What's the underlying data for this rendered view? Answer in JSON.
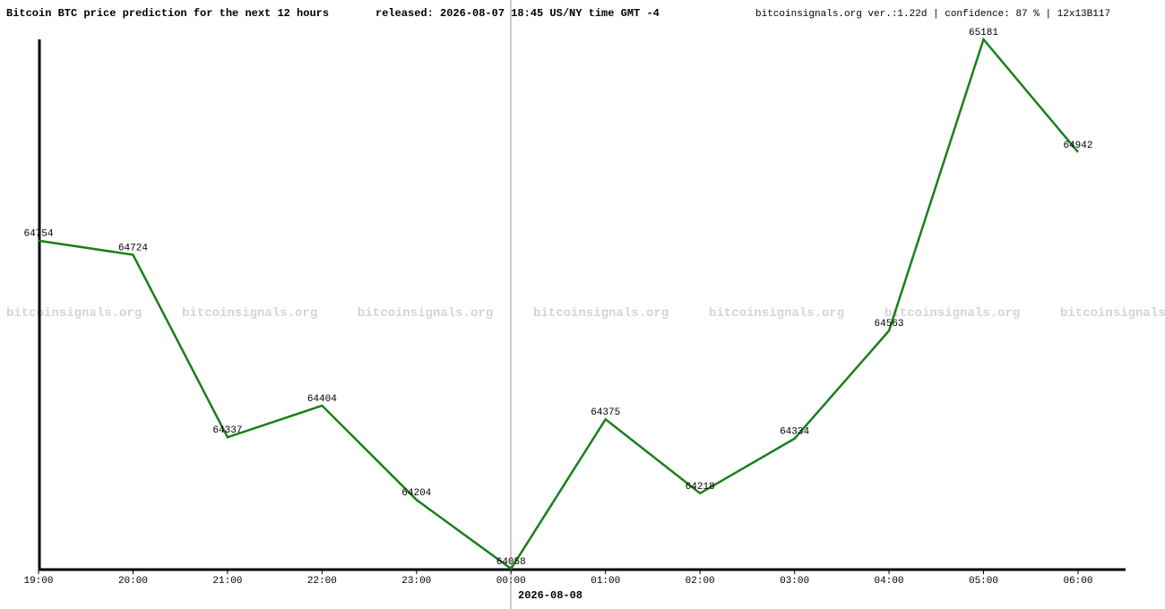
{
  "chart_data": {
    "type": "line",
    "title": "Bitcoin BTC price prediction for the next 12 hours",
    "subtitle": "released: 2026-08-07 18:45 US/NY time GMT -4",
    "source_note": "bitcoinsignals.org ver.:1.22d | confidence: 87 % | 12x13B117",
    "watermark": "bitcoinsignals.org",
    "date_marker": "2026-08-08",
    "categories": [
      "19:00",
      "20:00",
      "21:00",
      "22:00",
      "23:00",
      "00:00",
      "01:00",
      "02:00",
      "03:00",
      "04:00",
      "05:00",
      "06:00"
    ],
    "series": [
      {
        "name": "BTC",
        "color": "#1a7f1a",
        "values": [
          64754,
          64724,
          64337,
          64404,
          64204,
          64058,
          64375,
          64218,
          64334,
          64563,
          65181,
          64942
        ]
      }
    ],
    "ylim": [
      64058,
      65181
    ]
  }
}
